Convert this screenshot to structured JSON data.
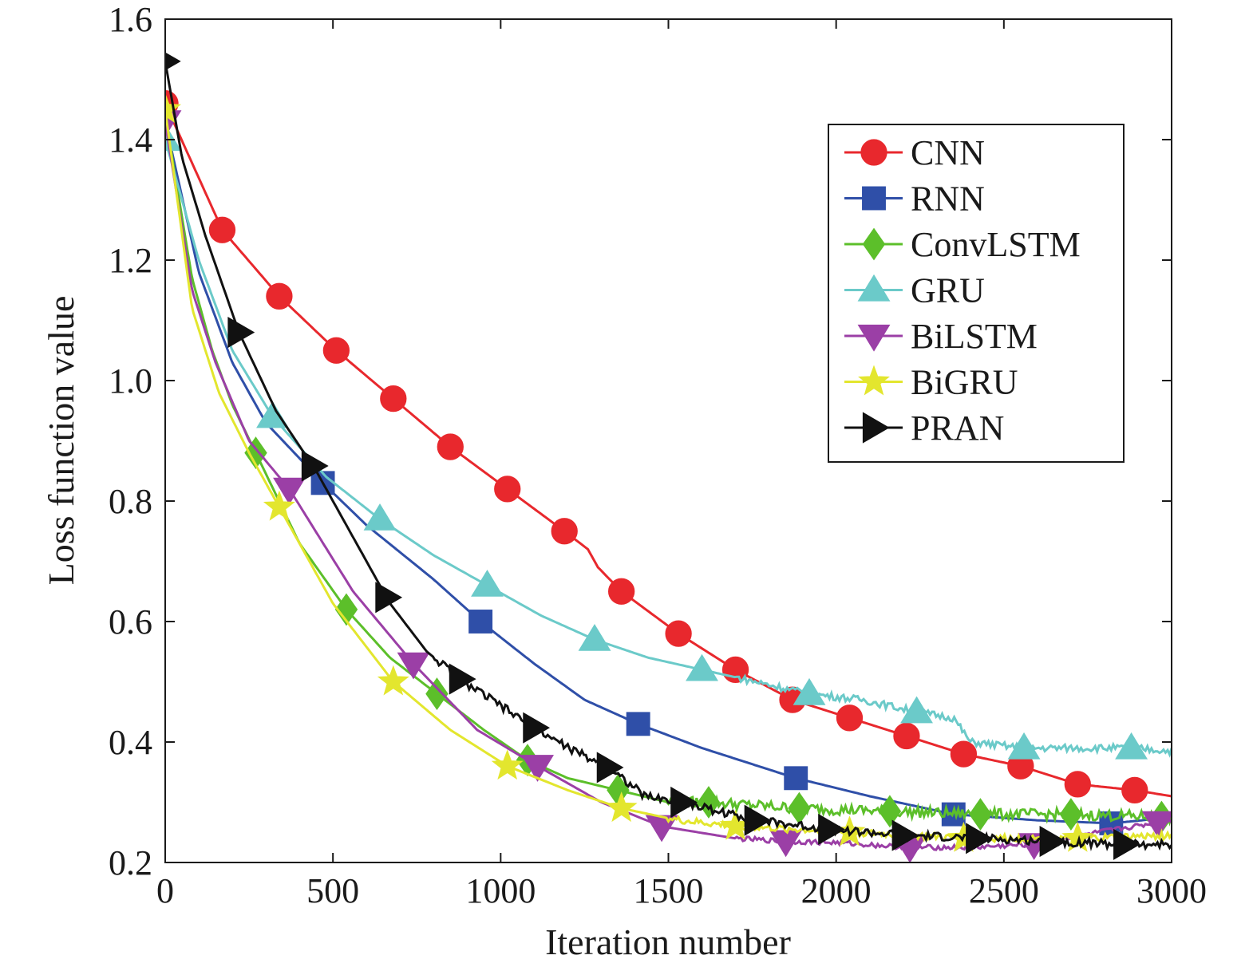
{
  "chart_data": {
    "type": "line",
    "xlabel": "Iteration number",
    "ylabel": "Loss function value",
    "xlim": [
      0,
      3000
    ],
    "ylim": [
      0.2,
      1.6
    ],
    "xticks": [
      0,
      500,
      1000,
      1500,
      2000,
      2500,
      3000
    ],
    "yticks": [
      0.2,
      0.4,
      0.6,
      0.8,
      1.0,
      1.2,
      1.4,
      1.6
    ],
    "xtick_labels": [
      "0",
      "500",
      "1000",
      "1500",
      "2000",
      "2500",
      "3000"
    ],
    "ytick_labels": [
      "0.2",
      "0.4",
      "0.6",
      "0.8",
      "1.0",
      "1.2",
      "1.4",
      "1.6"
    ],
    "grid": false,
    "legend_position": "top-right",
    "series": [
      {
        "name": "CNN",
        "color": "#e8282d",
        "marker": "circle",
        "points": [
          [
            0,
            1.46
          ],
          [
            170,
            1.25
          ],
          [
            340,
            1.14
          ],
          [
            510,
            1.05
          ],
          [
            680,
            0.97
          ],
          [
            850,
            0.89
          ],
          [
            1020,
            0.82
          ],
          [
            1190,
            0.75
          ],
          [
            1260,
            0.72
          ],
          [
            1290,
            0.69
          ],
          [
            1360,
            0.65
          ],
          [
            1530,
            0.58
          ],
          [
            1700,
            0.52
          ],
          [
            1870,
            0.47
          ],
          [
            2040,
            0.44
          ],
          [
            2210,
            0.41
          ],
          [
            2380,
            0.38
          ],
          [
            2550,
            0.36
          ],
          [
            2720,
            0.33
          ],
          [
            2890,
            0.32
          ],
          [
            3000,
            0.31
          ]
        ],
        "markers_x": [
          0,
          170,
          340,
          510,
          680,
          850,
          1020,
          1190,
          1360,
          1530,
          1700,
          1870,
          2040,
          2210,
          2380,
          2550,
          2720,
          2890
        ]
      },
      {
        "name": "RNN",
        "color": "#2f4fa8",
        "marker": "square",
        "points": [
          [
            0,
            1.43
          ],
          [
            100,
            1.18
          ],
          [
            200,
            1.03
          ],
          [
            300,
            0.93
          ],
          [
            470,
            0.83
          ],
          [
            600,
            0.76
          ],
          [
            800,
            0.67
          ],
          [
            940,
            0.6
          ],
          [
            1100,
            0.53
          ],
          [
            1250,
            0.47
          ],
          [
            1410,
            0.43
          ],
          [
            1600,
            0.39
          ],
          [
            1880,
            0.34
          ],
          [
            2100,
            0.31
          ],
          [
            2350,
            0.28
          ],
          [
            2600,
            0.27
          ],
          [
            2820,
            0.265
          ],
          [
            3000,
            0.275
          ]
        ],
        "markers_x": [
          470,
          940,
          1410,
          1880,
          2350,
          2820
        ]
      },
      {
        "name": "ConvLSTM",
        "color": "#5cbf2a",
        "marker": "diamond",
        "points": [
          [
            0,
            1.44
          ],
          [
            80,
            1.17
          ],
          [
            140,
            1.05
          ],
          [
            200,
            0.96
          ],
          [
            270,
            0.88
          ],
          [
            400,
            0.73
          ],
          [
            540,
            0.62
          ],
          [
            670,
            0.54
          ],
          [
            810,
            0.48
          ],
          [
            950,
            0.42
          ],
          [
            1080,
            0.37
          ],
          [
            1200,
            0.34
          ],
          [
            1350,
            0.32
          ],
          [
            1500,
            0.3
          ],
          [
            1620,
            0.3
          ],
          [
            1890,
            0.29
          ],
          [
            2160,
            0.285
          ],
          [
            2430,
            0.28
          ],
          [
            2700,
            0.28
          ],
          [
            3000,
            0.275
          ]
        ],
        "markers_x": [
          270,
          540,
          810,
          1080,
          1350,
          1620,
          1890,
          2160,
          2430,
          2700,
          2970
        ],
        "noise": {
          "from": 1500,
          "amp": 0.009
        }
      },
      {
        "name": "GRU",
        "color": "#6bcac9",
        "marker": "triangle-up",
        "points": [
          [
            0,
            1.4
          ],
          [
            100,
            1.2
          ],
          [
            200,
            1.05
          ],
          [
            320,
            0.94
          ],
          [
            480,
            0.84
          ],
          [
            640,
            0.77
          ],
          [
            800,
            0.71
          ],
          [
            960,
            0.66
          ],
          [
            1120,
            0.61
          ],
          [
            1280,
            0.57
          ],
          [
            1440,
            0.54
          ],
          [
            1600,
            0.52
          ],
          [
            1760,
            0.5
          ],
          [
            1920,
            0.48
          ],
          [
            2080,
            0.47
          ],
          [
            2240,
            0.45
          ],
          [
            2350,
            0.44
          ],
          [
            2400,
            0.4
          ],
          [
            2560,
            0.39
          ],
          [
            2720,
            0.39
          ],
          [
            2880,
            0.39
          ],
          [
            3000,
            0.385
          ]
        ],
        "markers_x": [
          0,
          320,
          640,
          960,
          1280,
          1600,
          1920,
          2240,
          2560,
          2880
        ],
        "noise": {
          "from": 1700,
          "amp": 0.006
        }
      },
      {
        "name": "BiLSTM",
        "color": "#9b3fa6",
        "marker": "triangle-down",
        "points": [
          [
            0,
            1.43
          ],
          [
            80,
            1.15
          ],
          [
            150,
            1.03
          ],
          [
            250,
            0.9
          ],
          [
            370,
            0.82
          ],
          [
            560,
            0.65
          ],
          [
            740,
            0.53
          ],
          [
            930,
            0.42
          ],
          [
            1110,
            0.36
          ],
          [
            1300,
            0.3
          ],
          [
            1480,
            0.26
          ],
          [
            1700,
            0.24
          ],
          [
            1850,
            0.235
          ],
          [
            2000,
            0.233
          ],
          [
            2220,
            0.225
          ],
          [
            2400,
            0.225
          ],
          [
            2590,
            0.23
          ],
          [
            2780,
            0.25
          ],
          [
            3000,
            0.27
          ]
        ],
        "markers_x": [
          0,
          370,
          740,
          1110,
          1480,
          1850,
          2220,
          2590,
          2960
        ],
        "noise": {
          "from": 1700,
          "amp": 0.004
        }
      },
      {
        "name": "BiGRU",
        "color": "#e3e62e",
        "marker": "star",
        "points": [
          [
            0,
            1.45
          ],
          [
            80,
            1.12
          ],
          [
            160,
            0.98
          ],
          [
            250,
            0.88
          ],
          [
            340,
            0.79
          ],
          [
            500,
            0.63
          ],
          [
            680,
            0.5
          ],
          [
            850,
            0.42
          ],
          [
            1020,
            0.36
          ],
          [
            1200,
            0.32
          ],
          [
            1360,
            0.29
          ],
          [
            1530,
            0.27
          ],
          [
            1700,
            0.26
          ],
          [
            1870,
            0.255
          ],
          [
            2040,
            0.25
          ],
          [
            2210,
            0.245
          ],
          [
            2380,
            0.24
          ],
          [
            2550,
            0.24
          ],
          [
            2720,
            0.24
          ],
          [
            3000,
            0.245
          ]
        ],
        "markers_x": [
          0,
          340,
          680,
          1020,
          1360,
          1700,
          2040,
          2380,
          2720
        ],
        "noise": {
          "from": 1500,
          "amp": 0.006
        }
      },
      {
        "name": "PRAN",
        "color": "#111111",
        "marker": "triangle-right",
        "points": [
          [
            0,
            1.53
          ],
          [
            50,
            1.37
          ],
          [
            120,
            1.24
          ],
          [
            220,
            1.08
          ],
          [
            330,
            0.95
          ],
          [
            450,
            0.85
          ],
          [
            560,
            0.74
          ],
          [
            670,
            0.63
          ],
          [
            780,
            0.55
          ],
          [
            890,
            0.5
          ],
          [
            1000,
            0.46
          ],
          [
            1110,
            0.42
          ],
          [
            1220,
            0.385
          ],
          [
            1330,
            0.355
          ],
          [
            1430,
            0.31
          ],
          [
            1540,
            0.3
          ],
          [
            1760,
            0.27
          ],
          [
            1980,
            0.255
          ],
          [
            2200,
            0.245
          ],
          [
            2420,
            0.24
          ],
          [
            2640,
            0.235
          ],
          [
            2860,
            0.23
          ],
          [
            3000,
            0.23
          ]
        ],
        "markers_x": [
          0,
          220,
          440,
          660,
          880,
          1100,
          1320,
          1540,
          1760,
          1980,
          2200,
          2420,
          2640,
          2860
        ],
        "noise": {
          "from": 800,
          "amp": 0.007
        }
      }
    ]
  }
}
